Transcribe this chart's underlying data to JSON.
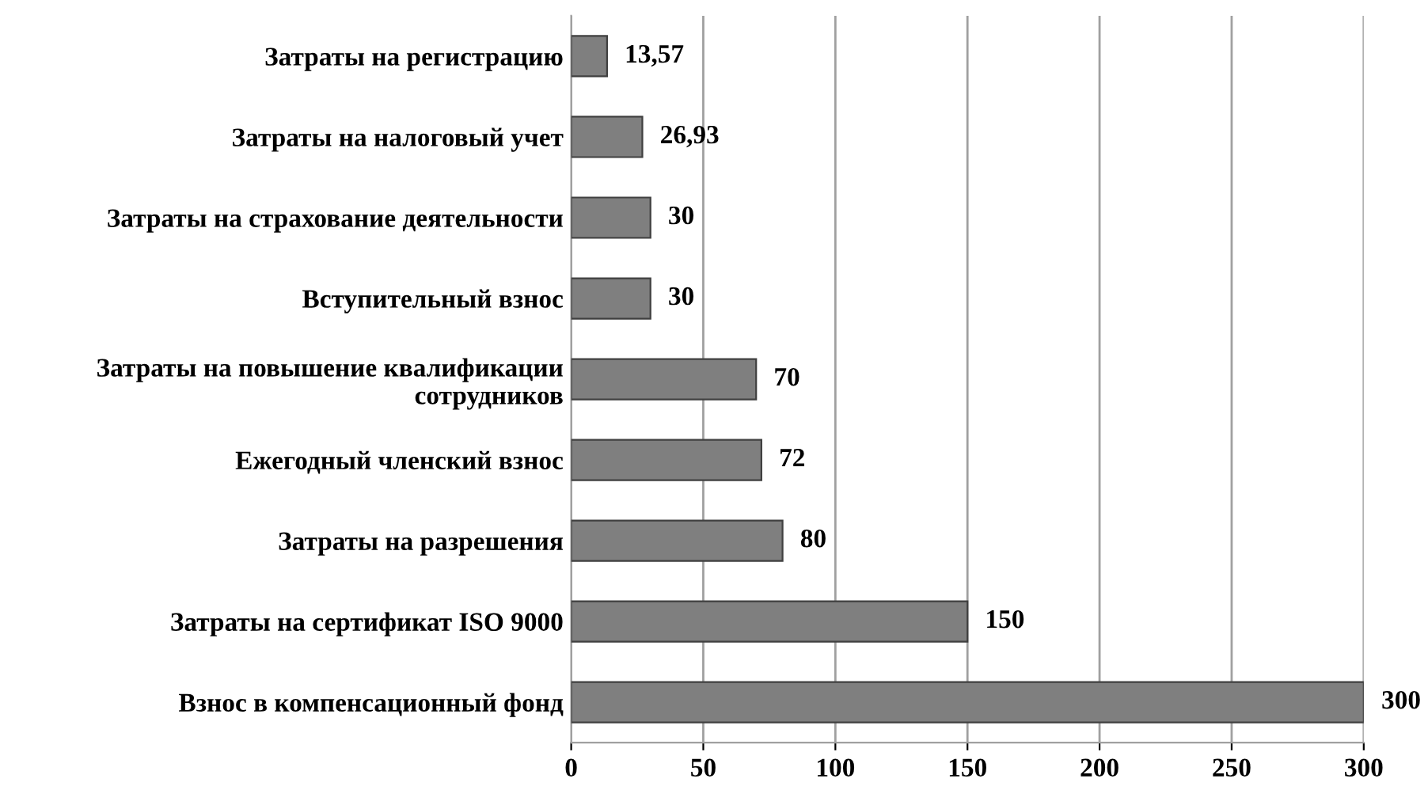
{
  "chart_data": {
    "type": "bar",
    "orientation": "horizontal",
    "categories": [
      "Затраты на регистрацию",
      "Затраты на налоговый учет",
      "Затраты на страхование деятельности",
      "Вступительный взнос",
      "Затраты на повышение квалификации сотрудников",
      "Ежегодный членский взнос",
      "Затраты на разрешения",
      "Затраты на сертификат ISO 9000",
      "Взнос в компенсационный фонд"
    ],
    "values": [
      13.57,
      26.93,
      30,
      30,
      70,
      72,
      80,
      150,
      300
    ],
    "value_labels": [
      "13,57",
      "26,93",
      "30",
      "30",
      "70",
      "72",
      "80",
      "150",
      "300"
    ],
    "color": "#7f7f7f",
    "xlim": [
      0,
      300
    ],
    "xticks": [
      0,
      50,
      100,
      150,
      200,
      250,
      300
    ],
    "grid": "x"
  }
}
